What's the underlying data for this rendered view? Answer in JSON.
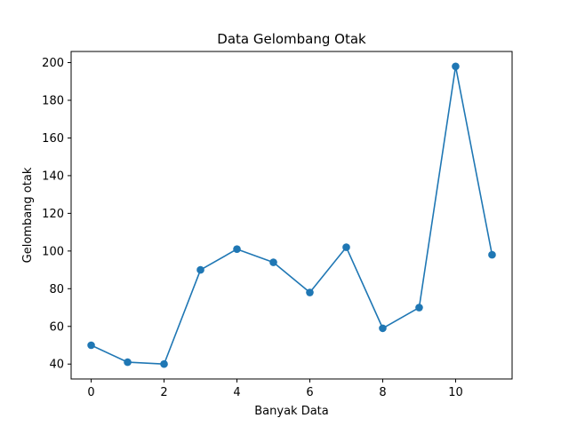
{
  "chart_data": {
    "type": "line",
    "title": "Data Gelombang Otak",
    "xlabel": "Banyak Data",
    "ylabel": "Gelombang otak",
    "x": [
      0,
      1,
      2,
      3,
      4,
      5,
      6,
      7,
      8,
      9,
      10,
      11
    ],
    "series": [
      {
        "values": [
          50,
          41,
          40,
          90,
          101,
          94,
          78,
          102,
          59,
          70,
          198,
          98
        ],
        "color": "#1f77b4",
        "marker": "circle"
      }
    ],
    "xlim": [
      -0.55,
      11.55
    ],
    "ylim": [
      32.1,
      205.9
    ],
    "xticks": [
      0,
      2,
      4,
      6,
      8,
      10
    ],
    "yticks": [
      40,
      60,
      80,
      100,
      120,
      140,
      160,
      180,
      200
    ],
    "grid": false,
    "legend": "none"
  }
}
